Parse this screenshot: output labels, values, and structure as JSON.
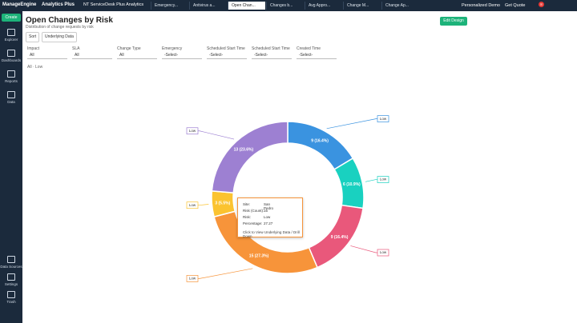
{
  "topbar": {
    "brand": "ManageEngine",
    "product": "Analytics Plus",
    "workspace": "NT ServiceDesk Plus Analytics",
    "tabs": [
      "Emergency...",
      "Antivirus a...",
      "Open Chan...",
      "Changes b...",
      "Avg Appro...",
      "Change M...",
      "Change Ap..."
    ],
    "active_tab": 2,
    "demo": "Personalized Demo",
    "quote": "Get Quote",
    "notifications": "8"
  },
  "sidebar": {
    "create": "Create",
    "items": [
      "Explorer",
      "Dashboards",
      "Reports",
      "Data"
    ],
    "bottom": [
      "Data Sources",
      "Settings",
      "Trash"
    ]
  },
  "header": {
    "title": "Open Changes by Risk",
    "subtitle": "Distribution of change requests by risk",
    "edit": "Edit Design"
  },
  "toolbar": [
    "Sort",
    "Underlying Data"
  ],
  "filters": [
    {
      "label": "Impact",
      "value": "All"
    },
    {
      "label": "SLA",
      "value": "All"
    },
    {
      "label": "Change Type",
      "value": "All"
    },
    {
      "label": "Emergency",
      "value": "-Select-"
    },
    {
      "label": "Scheduled Start Time",
      "value": "-Select-"
    },
    {
      "label": "Scheduled Start Time",
      "value": "-Select-"
    },
    {
      "label": "Created Time",
      "value": "-Select-"
    }
  ],
  "breadcrumb": [
    "All",
    "Low"
  ],
  "tooltip": {
    "rows": [
      [
        "Site:",
        "San Pedro"
      ],
      [
        "Risk (Count):",
        "15"
      ],
      [
        "Risk:",
        "Low"
      ],
      [
        "Percentage:",
        "27.27"
      ]
    ],
    "footer": "Click to View Underlying Data / Drill Down"
  },
  "chart_data": {
    "type": "pie",
    "donut": true,
    "categories": [
      "Low",
      "Low",
      "Low",
      "Low",
      "Low",
      "Low"
    ],
    "values": [
      9,
      6,
      9,
      15,
      3,
      13
    ],
    "value_labels": [
      "9 (16.4%)",
      "6 (10.9%)",
      "9 (16.4%)",
      "15 (27.3%)",
      "3 (5.5%)",
      "13 (23.6%)"
    ],
    "colors": [
      "#3a93e0",
      "#19d1c0",
      "#e9587b",
      "#f7943a",
      "#fbc330",
      "#9d80d2"
    ]
  }
}
